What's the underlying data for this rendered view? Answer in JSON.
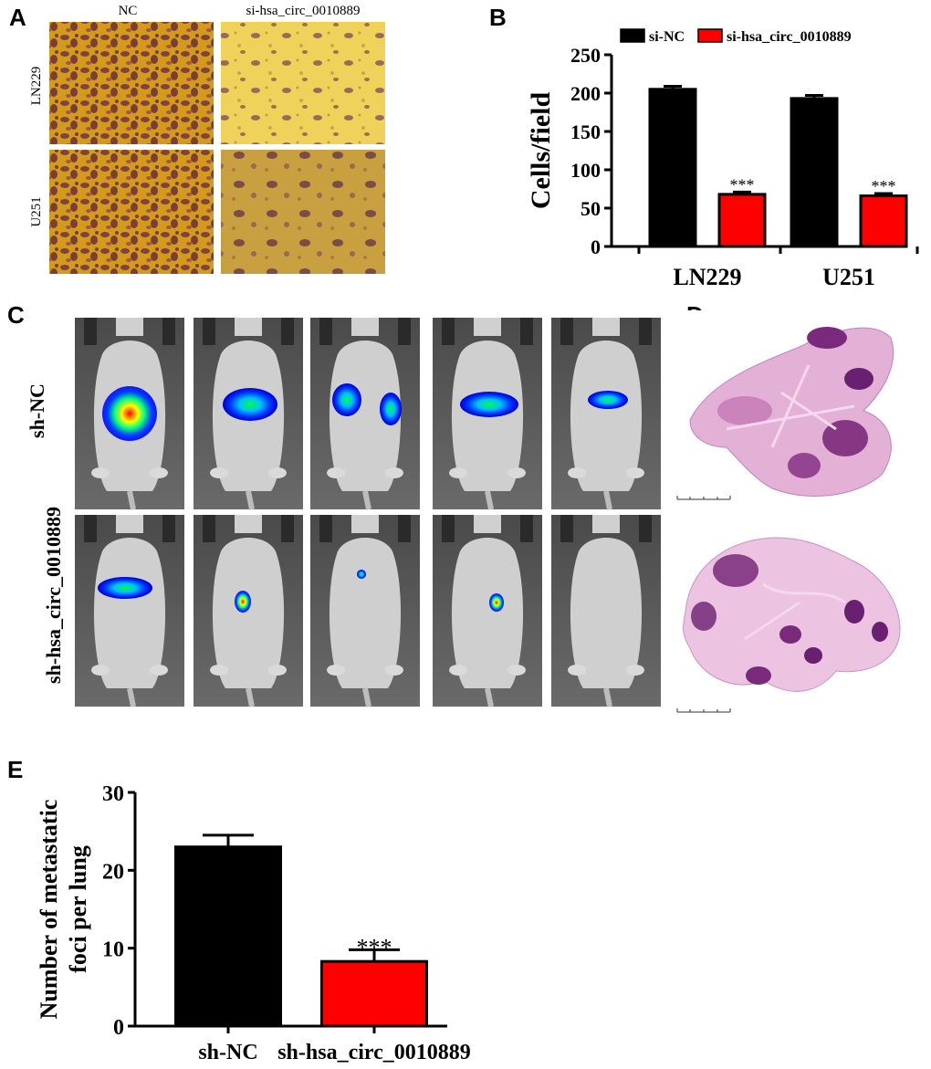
{
  "panels": {
    "A": {
      "letter": "A",
      "col_labels": [
        "NC",
        "si-hsa_circ_0010889"
      ],
      "row_labels": [
        "LN229",
        "U251"
      ]
    },
    "B": {
      "letter": "B"
    },
    "C": {
      "letter": "C",
      "row_labels": [
        "sh-NC",
        "sh-hsa_circ_0010889"
      ]
    },
    "D": {
      "letter": "D"
    },
    "E": {
      "letter": "E"
    }
  },
  "colors": {
    "control": "#000000",
    "treated": "#ff0000",
    "micro_bg": "#d9a520",
    "micro_cell": "#6b2a4a",
    "mouse_bg": "#5a5a5a",
    "mouse_body": "#c8c8c8",
    "histo_pink": "#e8b8d8",
    "histo_dark": "#7a2a7a"
  },
  "chart_data": [
    {
      "id": "B",
      "type": "bar",
      "categories": [
        "LN229",
        "U251"
      ],
      "series": [
        {
          "name": "si-NC",
          "color": "#000000",
          "values": [
            205,
            193
          ],
          "errors": [
            4,
            4
          ],
          "sig": [
            "",
            ""
          ]
        },
        {
          "name": "si-hsa_circ_0010889",
          "color": "#ff0000",
          "values": [
            68,
            66
          ],
          "errors": [
            3,
            3
          ],
          "sig": [
            "***",
            "***"
          ]
        }
      ],
      "ylabel": "Cells/field",
      "ylim": [
        0,
        250
      ],
      "yticks": [
        0,
        50,
        100,
        150,
        200,
        250
      ],
      "legend": "top"
    },
    {
      "id": "E",
      "type": "bar",
      "categories": [
        "sh-NC",
        "sh-hsa_circ_0010889"
      ],
      "values": [
        23,
        8.3
      ],
      "errors": [
        1.5,
        1.5
      ],
      "colors": [
        "#000000",
        "#ff0000"
      ],
      "sig": [
        "",
        "***"
      ],
      "ylabel": "Number of metastatic foci per lung",
      "ylabel_lines": [
        "Number of metastatic",
        "foci per lung"
      ],
      "ylim": [
        0,
        30
      ],
      "yticks": [
        0,
        10,
        20,
        30
      ]
    }
  ]
}
